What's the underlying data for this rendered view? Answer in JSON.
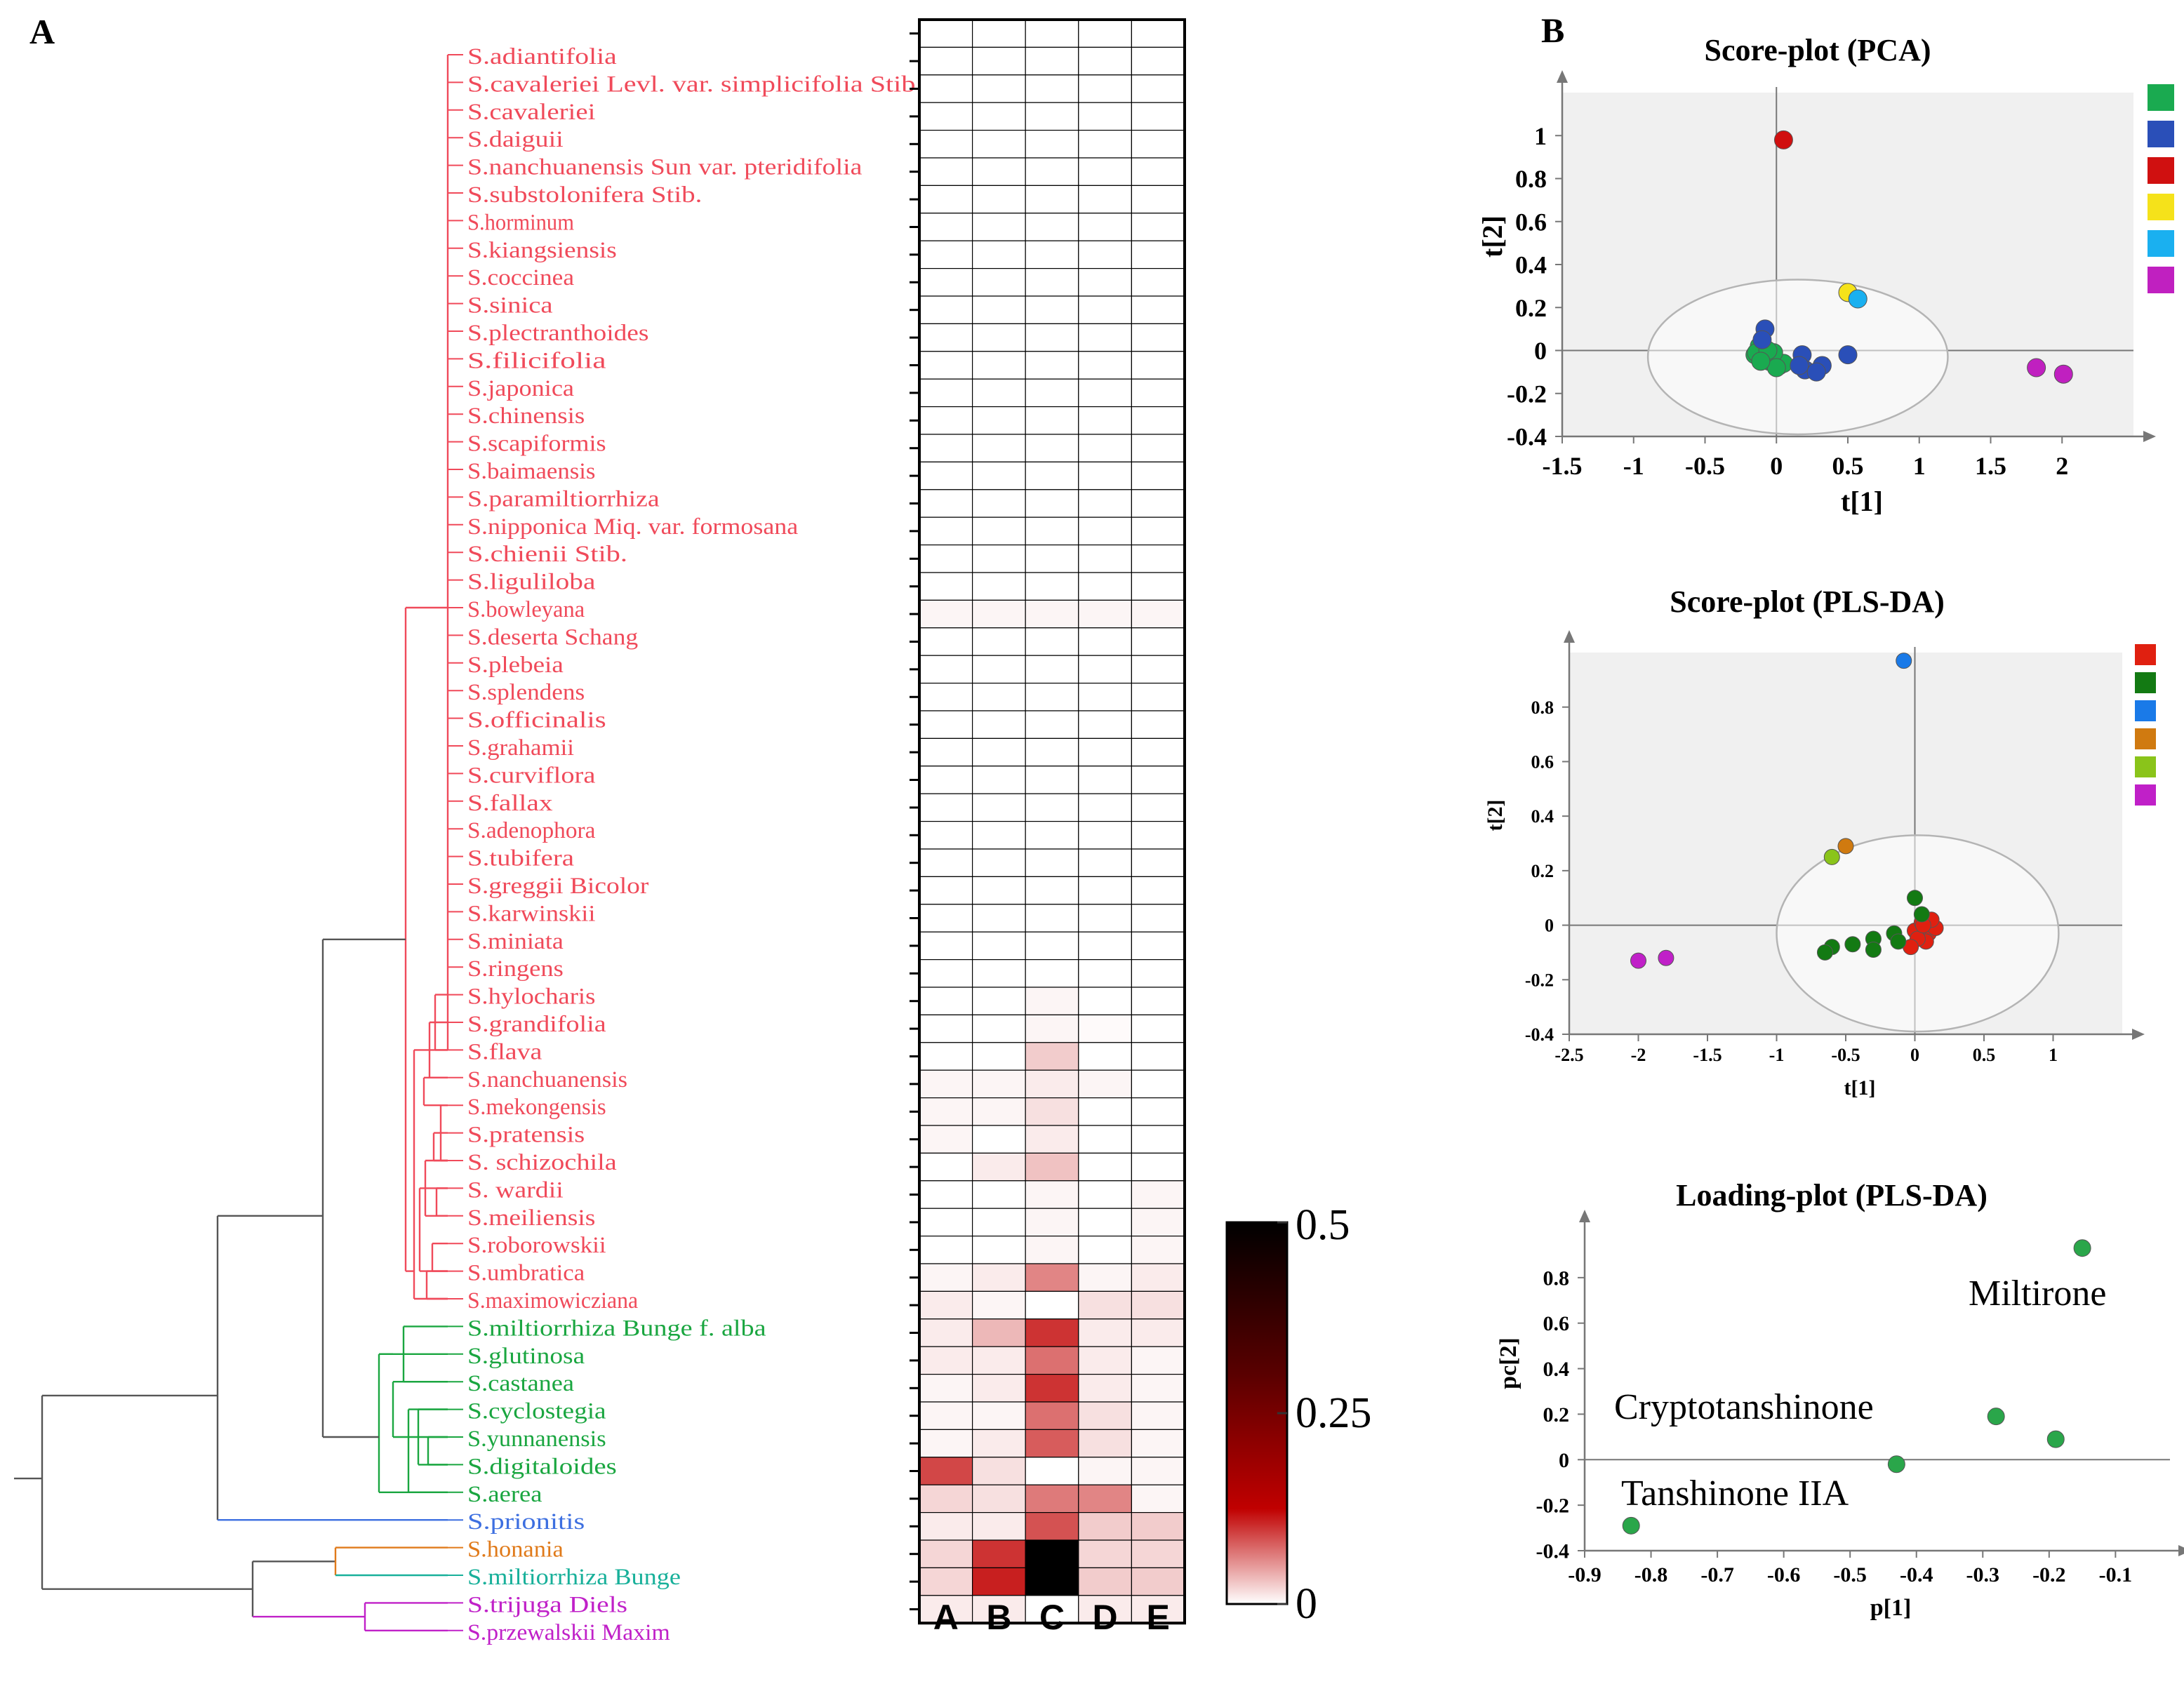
{
  "panel_a": {
    "label": "A",
    "taxa": [
      {
        "name": "S.adiantifolia",
        "clade": "red"
      },
      {
        "name": "S.cavaleriei Levl. var. simplicifolia Stib",
        "clade": "red"
      },
      {
        "name": "S.cavaleriei",
        "clade": "red"
      },
      {
        "name": "S.daiguii",
        "clade": "red"
      },
      {
        "name": "S.nanchuanensis Sun var. pteridifolia",
        "clade": "red"
      },
      {
        "name": "S.substolonifera Stib.",
        "clade": "red"
      },
      {
        "name": "S.horminum",
        "clade": "red"
      },
      {
        "name": "S.kiangsiensis",
        "clade": "red"
      },
      {
        "name": "S.coccinea",
        "clade": "red"
      },
      {
        "name": "S.sinica",
        "clade": "red"
      },
      {
        "name": "S.plectranthoides",
        "clade": "red"
      },
      {
        "name": "S.filicifolia",
        "clade": "red"
      },
      {
        "name": "S.japonica",
        "clade": "red"
      },
      {
        "name": "S.chinensis",
        "clade": "red"
      },
      {
        "name": "S.scapiformis",
        "clade": "red"
      },
      {
        "name": "S.baimaensis",
        "clade": "red"
      },
      {
        "name": "S.paramiltiorrhiza",
        "clade": "red"
      },
      {
        "name": "S.nipponica Miq. var. formosana",
        "clade": "red"
      },
      {
        "name": "S.chienii Stib.",
        "clade": "red"
      },
      {
        "name": "S.liguliloba",
        "clade": "red"
      },
      {
        "name": "S.bowleyana",
        "clade": "red"
      },
      {
        "name": "S.deserta Schang",
        "clade": "red"
      },
      {
        "name": "S.plebeia",
        "clade": "red"
      },
      {
        "name": "S.splendens",
        "clade": "red"
      },
      {
        "name": "S.officinalis",
        "clade": "red"
      },
      {
        "name": "S.grahamii",
        "clade": "red"
      },
      {
        "name": "S.curviflora",
        "clade": "red"
      },
      {
        "name": "S.fallax",
        "clade": "red"
      },
      {
        "name": "S.adenophora",
        "clade": "red"
      },
      {
        "name": "S.tubifera",
        "clade": "red"
      },
      {
        "name": "S.greggii Bicolor",
        "clade": "red"
      },
      {
        "name": "S.karwinskii",
        "clade": "red"
      },
      {
        "name": "S.miniata",
        "clade": "red"
      },
      {
        "name": "S.ringens",
        "clade": "red"
      },
      {
        "name": "S.hylocharis",
        "clade": "red"
      },
      {
        "name": "S.grandifolia",
        "clade": "red"
      },
      {
        "name": "S.flava",
        "clade": "red"
      },
      {
        "name": "S.nanchuanensis",
        "clade": "red"
      },
      {
        "name": "S.mekongensis",
        "clade": "red"
      },
      {
        "name": "S.pratensis",
        "clade": "red"
      },
      {
        "name": "S. schizochila",
        "clade": "red"
      },
      {
        "name": "S. wardii",
        "clade": "red"
      },
      {
        "name": "S.meiliensis",
        "clade": "red"
      },
      {
        "name": "S.roborowskii",
        "clade": "red"
      },
      {
        "name": "S.umbratica",
        "clade": "red"
      },
      {
        "name": "S.maximowicziana",
        "clade": "red"
      },
      {
        "name": "S.miltiorrhiza Bunge f. alba",
        "clade": "green"
      },
      {
        "name": "S.glutinosa",
        "clade": "green"
      },
      {
        "name": "S.castanea",
        "clade": "green"
      },
      {
        "name": "S.cyclostegia",
        "clade": "green"
      },
      {
        "name": "S.yunnanensis",
        "clade": "green"
      },
      {
        "name": "S.digitaloides",
        "clade": "green"
      },
      {
        "name": "S.aerea",
        "clade": "green"
      },
      {
        "name": "S.prionitis",
        "clade": "blue"
      },
      {
        "name": "S.honania",
        "clade": "orange"
      },
      {
        "name": "S.miltiorrhiza Bunge",
        "clade": "teal"
      },
      {
        "name": "S.trijuga Diels",
        "clade": "magenta"
      },
      {
        "name": "S.przewalskii Maxim",
        "clade": "magenta"
      }
    ],
    "clade_colors": {
      "red": "#f04a5a",
      "green": "#1aa640",
      "blue": "#3d6fe0",
      "orange": "#e07a1a",
      "teal": "#18b09a",
      "magenta": "#c020c8"
    },
    "tree_color": "#555555",
    "heatmap_columns": [
      "A",
      "B",
      "C",
      "D",
      "E"
    ],
    "heatmap_values": [
      [
        0,
        0,
        0,
        0,
        0
      ],
      [
        0,
        0,
        0,
        0,
        0
      ],
      [
        0,
        0,
        0,
        0,
        0
      ],
      [
        0,
        0,
        0,
        0,
        0
      ],
      [
        0,
        0,
        0,
        0,
        0
      ],
      [
        0,
        0,
        0,
        0,
        0
      ],
      [
        0,
        0,
        0,
        0,
        0
      ],
      [
        0,
        0,
        0,
        0,
        0
      ],
      [
        0,
        0,
        0,
        0,
        0
      ],
      [
        0,
        0,
        0,
        0,
        0
      ],
      [
        0,
        0,
        0,
        0,
        0
      ],
      [
        0,
        0,
        0,
        0,
        0
      ],
      [
        0,
        0,
        0,
        0,
        0
      ],
      [
        0,
        0,
        0,
        0,
        0
      ],
      [
        0,
        0,
        0,
        0,
        0
      ],
      [
        0,
        0,
        0,
        0,
        0
      ],
      [
        0,
        0,
        0,
        0,
        0
      ],
      [
        0,
        0,
        0,
        0,
        0
      ],
      [
        0,
        0,
        0,
        0,
        0
      ],
      [
        0,
        0,
        0,
        0,
        0
      ],
      [
        0,
        0,
        0,
        0,
        0
      ],
      [
        0.01,
        0.01,
        0.01,
        0.01,
        0.01
      ],
      [
        0,
        0,
        0,
        0,
        0
      ],
      [
        0,
        0,
        0,
        0,
        0
      ],
      [
        0,
        0,
        0,
        0,
        0
      ],
      [
        0,
        0,
        0,
        0,
        0
      ],
      [
        0,
        0,
        0,
        0,
        0
      ],
      [
        0,
        0,
        0,
        0,
        0
      ],
      [
        0,
        0,
        0,
        0,
        0
      ],
      [
        0,
        0,
        0,
        0,
        0
      ],
      [
        0,
        0,
        0,
        0,
        0
      ],
      [
        0,
        0,
        0,
        0,
        0
      ],
      [
        0,
        0,
        0,
        0,
        0
      ],
      [
        0,
        0,
        0,
        0,
        0
      ],
      [
        0,
        0,
        0,
        0,
        0
      ],
      [
        0,
        0,
        0.01,
        0,
        0
      ],
      [
        0,
        0,
        0.01,
        0.005,
        0
      ],
      [
        0,
        0,
        0.05,
        0,
        0
      ],
      [
        0.01,
        0.01,
        0.02,
        0.01,
        0
      ],
      [
        0.01,
        0.01,
        0.03,
        0,
        0
      ],
      [
        0.01,
        0,
        0.02,
        0,
        0
      ],
      [
        0,
        0.02,
        0.06,
        0,
        0
      ],
      [
        0,
        0,
        0.01,
        0,
        0.01
      ],
      [
        0,
        0,
        0.01,
        0,
        0.01
      ],
      [
        0,
        0,
        0.01,
        0,
        0.01
      ],
      [
        0.01,
        0.02,
        0.12,
        0.01,
        0.02
      ],
      [
        0.02,
        0.01,
        0,
        0.03,
        0.03
      ],
      [
        0.02,
        0.07,
        0.2,
        0.02,
        0.02
      ],
      [
        0.02,
        0.02,
        0.14,
        0.02,
        0.01
      ],
      [
        0.01,
        0.02,
        0.2,
        0.02,
        0.01
      ],
      [
        0.01,
        0.01,
        0.14,
        0.03,
        0.01
      ],
      [
        0.01,
        0.02,
        0.16,
        0.03,
        0.01
      ],
      [
        0.18,
        0.03,
        0,
        0.01,
        0.01
      ],
      [
        0.04,
        0.03,
        0.13,
        0.12,
        0.01
      ],
      [
        0.02,
        0.02,
        0.17,
        0.05,
        0.05
      ],
      [
        0.04,
        0.2,
        0.5,
        0.04,
        0.04
      ],
      [
        0.04,
        0.22,
        0.5,
        0.05,
        0.05
      ],
      [
        0.02,
        0.02,
        0,
        0.02,
        0.02
      ]
    ],
    "colorbar": {
      "min": 0,
      "max": 0.5,
      "ticks": [
        "0.5",
        "0.25",
        "0"
      ],
      "colors": [
        "#000000",
        "#c00000",
        "#ffffff"
      ]
    }
  },
  "panel_b": {
    "label": "B",
    "colors": {
      "green": "#1aaa50",
      "navy": "#2a4fb8",
      "red": "#d01010",
      "yellow": "#f5e21a",
      "cyan": "#1ab0f0",
      "magenta": "#c020c0",
      "red2": "#e02010",
      "dkgreen": "#137a13",
      "blue2": "#1a7ae8",
      "orange": "#d07a10",
      "ltgreen": "#8ac41a",
      "magenta2": "#c020c8",
      "loading": "#2aa64a",
      "ellipse": "#b4b4b4",
      "bg": "#f0f0f0",
      "axis": "#777777"
    }
  },
  "chart_data": [
    {
      "type": "heatmap",
      "title": "",
      "x": [
        "A",
        "B",
        "C",
        "D",
        "E"
      ],
      "y_source": "panel_a.taxa",
      "values_source": "panel_a.heatmap_values",
      "colorbar_range": [
        0,
        0.5
      ],
      "colorbar_ticks": [
        0.5,
        0.25,
        0
      ]
    },
    {
      "type": "scatter",
      "title": "Score-plot (PCA)",
      "xlabel": "t[1]",
      "ylabel": "t[2]",
      "xlim": [
        -1.5,
        2.5
      ],
      "ylim": [
        -0.4,
        1.2
      ],
      "xticks": [
        -1.5,
        -1,
        -0.5,
        0,
        0.5,
        1,
        1.5,
        2
      ],
      "yticks": [
        1,
        0.8,
        0.6,
        0.4,
        0.2,
        0,
        -0.2,
        -0.4
      ],
      "ellipse": {
        "cx": 0.15,
        "cy": -0.03,
        "rx": 1.05,
        "ry": 0.36
      },
      "legend_colors": [
        "green",
        "navy",
        "red",
        "yellow",
        "cyan",
        "magenta"
      ],
      "series": [
        {
          "color": "green",
          "points": [
            [
              -0.15,
              -0.02
            ],
            [
              -0.1,
              -0.03
            ],
            [
              -0.05,
              -0.05
            ],
            [
              0.02,
              -0.07
            ],
            [
              -0.12,
              0.02
            ],
            [
              -0.08,
              -0.04
            ],
            [
              0.05,
              -0.06
            ],
            [
              -0.02,
              -0.01
            ],
            [
              -0.14,
              -0.01
            ],
            [
              0.0,
              -0.08
            ],
            [
              -0.06,
              0.0
            ],
            [
              -0.11,
              -0.05
            ]
          ]
        },
        {
          "color": "navy",
          "points": [
            [
              -0.08,
              0.1
            ],
            [
              -0.1,
              0.05
            ],
            [
              0.18,
              -0.02
            ],
            [
              0.2,
              -0.09
            ],
            [
              0.32,
              -0.07
            ],
            [
              0.28,
              -0.1
            ],
            [
              0.5,
              -0.02
            ],
            [
              0.16,
              -0.07
            ]
          ]
        },
        {
          "color": "red",
          "points": [
            [
              0.05,
              0.98
            ]
          ]
        },
        {
          "color": "yellow",
          "points": [
            [
              0.5,
              0.27
            ]
          ]
        },
        {
          "color": "cyan",
          "points": [
            [
              0.57,
              0.24
            ]
          ]
        },
        {
          "color": "magenta",
          "points": [
            [
              1.82,
              -0.08
            ],
            [
              2.01,
              -0.11
            ]
          ]
        }
      ]
    },
    {
      "type": "scatter",
      "title": "Score-plot (PLS-DA)",
      "xlabel": "t[1]",
      "ylabel": "t[2]",
      "xlim": [
        -2.5,
        1.5
      ],
      "ylim": [
        -0.4,
        1.0
      ],
      "xticks": [
        -2.5,
        -2,
        -1.5,
        -1,
        -0.5,
        0,
        0.5,
        1
      ],
      "yticks": [
        0.8,
        0.6,
        0.4,
        0.2,
        0,
        -0.2,
        -0.4
      ],
      "ellipse": {
        "cx": 0.02,
        "cy": -0.03,
        "rx": 1.02,
        "ry": 0.36
      },
      "legend_colors": [
        "red2",
        "dkgreen",
        "blue2",
        "orange",
        "ltgreen",
        "magenta2"
      ],
      "series": [
        {
          "color": "red2",
          "points": [
            [
              0.0,
              -0.02
            ],
            [
              0.05,
              0.01
            ],
            [
              0.1,
              -0.03
            ],
            [
              0.15,
              -0.01
            ],
            [
              0.08,
              -0.06
            ],
            [
              0.12,
              0.02
            ],
            [
              0.02,
              -0.05
            ],
            [
              -0.03,
              -0.08
            ],
            [
              0.06,
              0.0
            ]
          ]
        },
        {
          "color": "dkgreen",
          "points": [
            [
              -0.3,
              -0.05
            ],
            [
              -0.45,
              -0.07
            ],
            [
              -0.6,
              -0.08
            ],
            [
              -0.15,
              -0.03
            ],
            [
              0.0,
              0.1
            ],
            [
              0.05,
              0.04
            ],
            [
              -0.3,
              -0.09
            ],
            [
              -0.12,
              -0.06
            ],
            [
              -0.65,
              -0.1
            ]
          ]
        },
        {
          "color": "blue2",
          "points": [
            [
              -0.08,
              0.97
            ]
          ]
        },
        {
          "color": "orange",
          "points": [
            [
              -0.5,
              0.29
            ]
          ]
        },
        {
          "color": "ltgreen",
          "points": [
            [
              -0.6,
              0.25
            ]
          ]
        },
        {
          "color": "magenta2",
          "points": [
            [
              -1.8,
              -0.12
            ],
            [
              -2.0,
              -0.13
            ]
          ]
        }
      ]
    },
    {
      "type": "scatter",
      "title": "Loading-plot (PLS-DA)",
      "xlabel": "p[1]",
      "ylabel": "pc[2]",
      "xlim": [
        -0.9,
        -0.02
      ],
      "ylim": [
        -0.4,
        1.0
      ],
      "xticks": [
        -0.9,
        -0.8,
        -0.7,
        -0.6,
        -0.5,
        -0.4,
        -0.3,
        -0.2,
        -0.1
      ],
      "yticks": [
        0.8,
        0.6,
        0.4,
        0.2,
        0,
        -0.2,
        -0.4
      ],
      "series": [
        {
          "color": "loading",
          "points": [
            [
              -0.15,
              0.93
            ],
            [
              -0.28,
              0.19
            ],
            [
              -0.19,
              0.09
            ],
            [
              -0.43,
              -0.02
            ],
            [
              -0.83,
              -0.29
            ]
          ]
        }
      ],
      "annotations": [
        "Miltirone",
        "Cryptotanshinone",
        "Tanshinone IIA"
      ]
    }
  ]
}
